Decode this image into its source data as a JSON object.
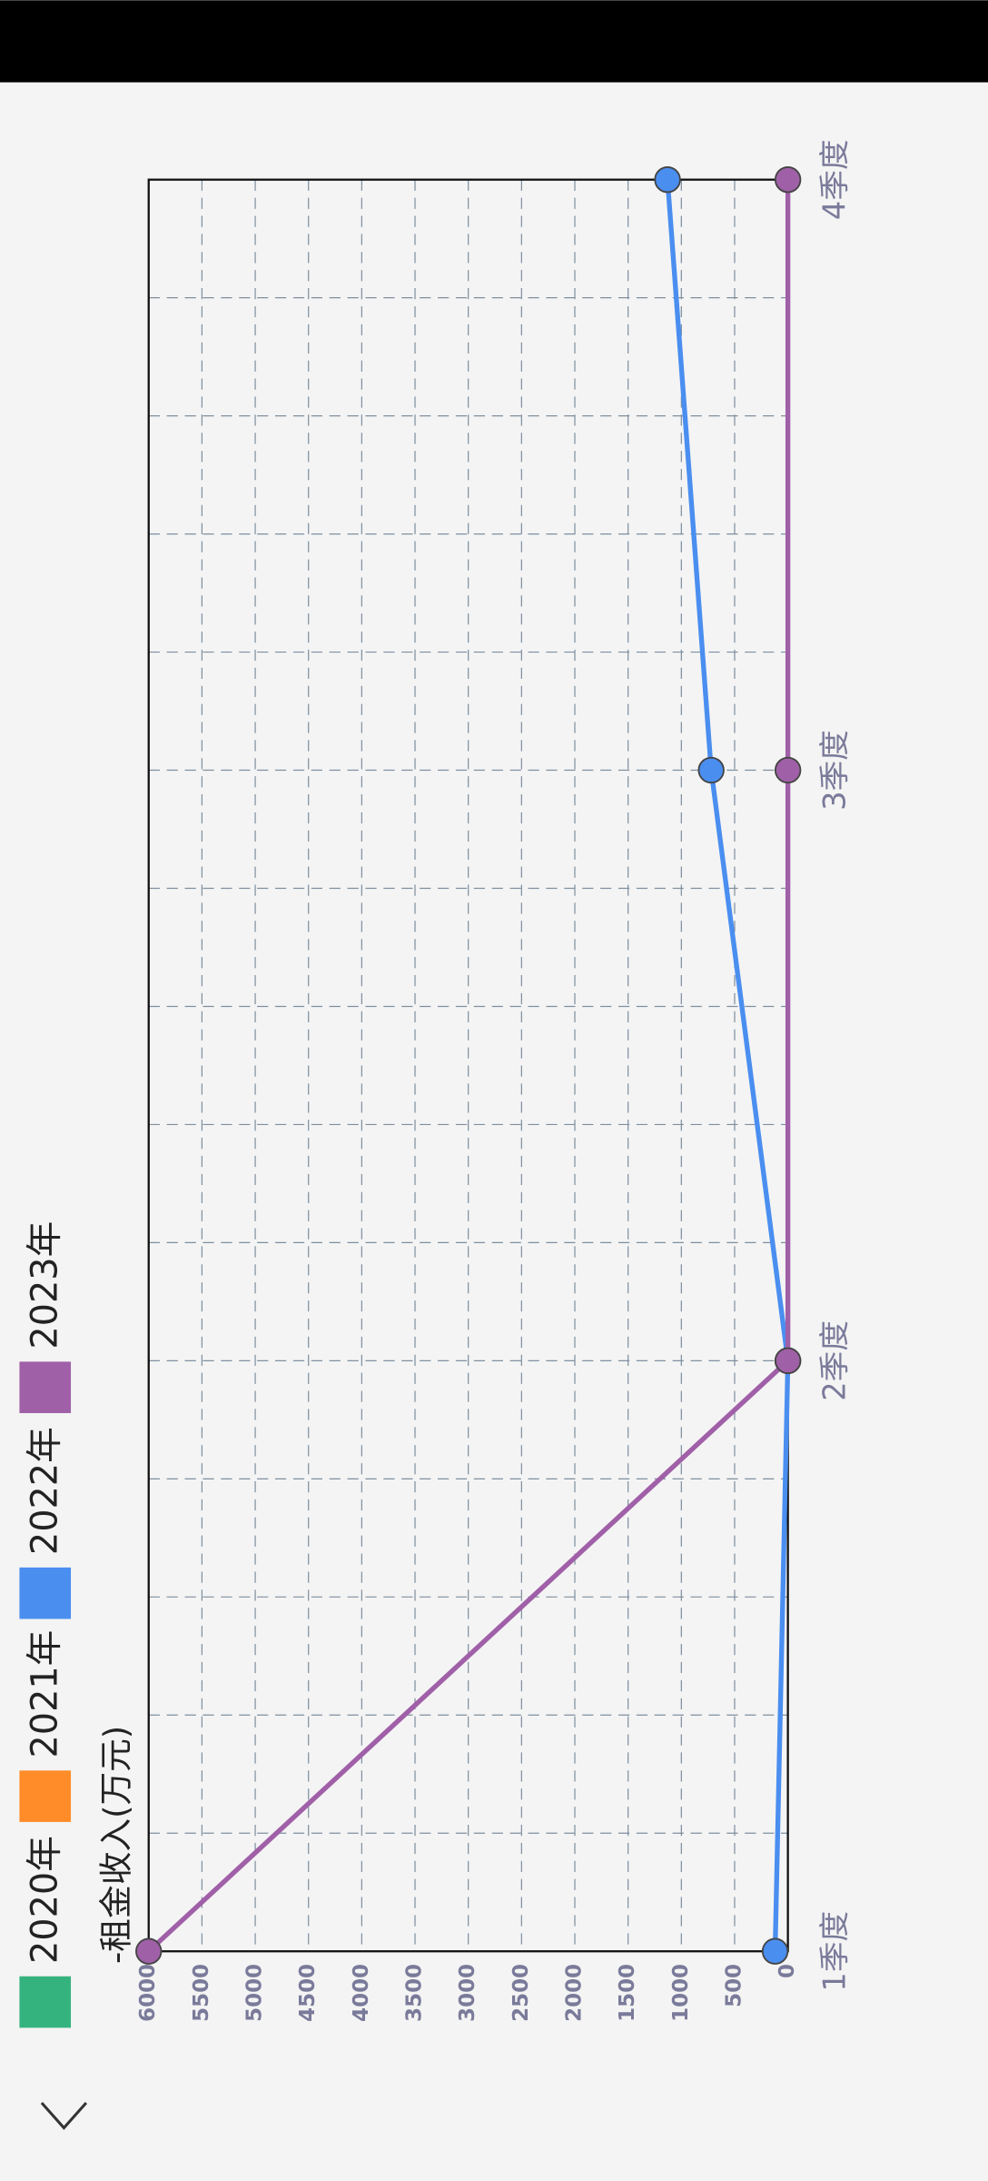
{
  "chart_data": {
    "type": "line",
    "title": "-租金收入(万元)",
    "categories": [
      "1季度",
      "2季度",
      "3季度",
      "4季度"
    ],
    "series": [
      {
        "name": "2020年",
        "color": "#35b37e",
        "values": [
          null,
          null,
          null,
          null
        ]
      },
      {
        "name": "2021年",
        "color": "#ff8c29",
        "values": [
          null,
          null,
          null,
          null
        ]
      },
      {
        "name": "2022年",
        "color": "#4a8ef0",
        "values": [
          120,
          0,
          720,
          1130
        ]
      },
      {
        "name": "2023年",
        "color": "#a060a8",
        "values": [
          6000,
          0,
          0,
          0
        ]
      }
    ],
    "ylim": [
      0,
      6000
    ],
    "yticks": [
      0,
      500,
      1000,
      1500,
      2000,
      2500,
      3000,
      3500,
      4000,
      4500,
      5000,
      5500,
      6000
    ],
    "grid": true
  }
}
